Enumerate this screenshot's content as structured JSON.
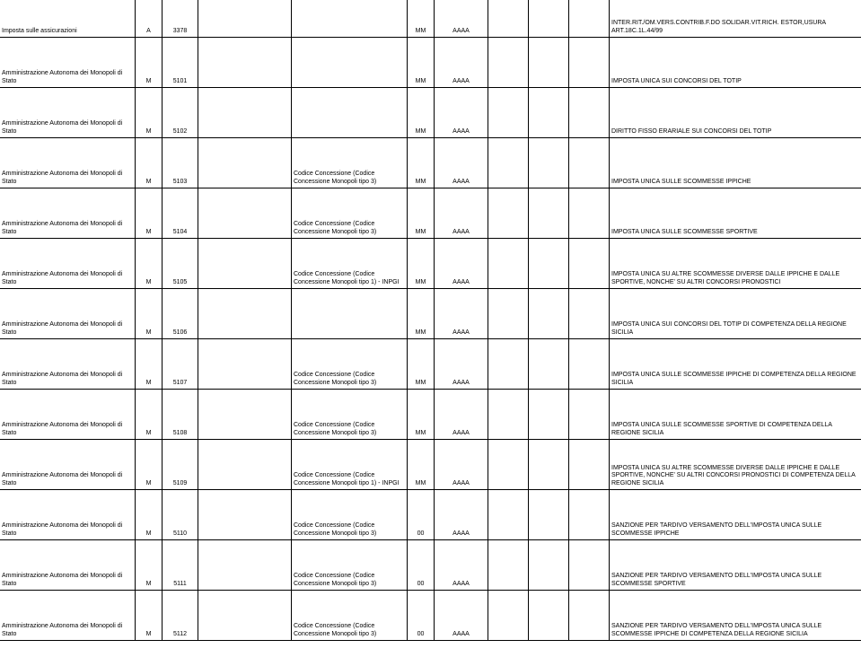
{
  "rows": [
    {
      "name": "Imposta sulle assicurazioni",
      "code1": "A",
      "code2": "3378",
      "col4": "",
      "col5": "",
      "mm": "MM",
      "aaaa": "AAAA",
      "col8": "",
      "col9": "",
      "col10": "",
      "desc": "INTER.RIT./OM.VERS.CONTRIB.F.DO SOLIDAR.VIT.RICH. ESTOR,USURA ART.18C.1L.44/99"
    },
    {
      "name": "Amministrazione Autonoma dei Monopoli di Stato",
      "code1": "M",
      "code2": "5101",
      "col4": "",
      "col5": "",
      "mm": "MM",
      "aaaa": "AAAA",
      "col8": "",
      "col9": "",
      "col10": "",
      "desc": "IMPOSTA UNICA SUI CONCORSI DEL TOTIP"
    },
    {
      "name": "Amministrazione Autonoma dei Monopoli di Stato",
      "code1": "M",
      "code2": "5102",
      "col4": "",
      "col5": "",
      "mm": "MM",
      "aaaa": "AAAA",
      "col8": "",
      "col9": "",
      "col10": "",
      "desc": "DIRITTO FISSO ERARIALE SUI CONCORSI DEL TOTIP"
    },
    {
      "name": "Amministrazione Autonoma dei Monopoli di Stato",
      "code1": "M",
      "code2": "5103",
      "col4": "",
      "col5": "Codice Concessione (Codice Concessione Monopoli tipo 3)",
      "mm": "MM",
      "aaaa": "AAAA",
      "col8": "",
      "col9": "",
      "col10": "",
      "desc": "IMPOSTA UNICA SULLE SCOMMESSE IPPICHE"
    },
    {
      "name": "Amministrazione Autonoma dei Monopoli di Stato",
      "code1": "M",
      "code2": "5104",
      "col4": "",
      "col5": "Codice Concessione (Codice Concessione Monopoli tipo 3)",
      "mm": "MM",
      "aaaa": "AAAA",
      "col8": "",
      "col9": "",
      "col10": "",
      "desc": "IMPOSTA UNICA SULLE SCOMMESSE SPORTIVE"
    },
    {
      "name": "Amministrazione Autonoma dei Monopoli di Stato",
      "code1": "M",
      "code2": "5105",
      "col4": "",
      "col5": "Codice Concessione (Codice Concessione Monopoli tipo 1) - INPGI",
      "mm": "MM",
      "aaaa": "AAAA",
      "col8": "",
      "col9": "",
      "col10": "",
      "desc": "IMPOSTA UNICA SU ALTRE SCOMMESSE DIVERSE DALLE IPPICHE E DALLE SPORTIVE, NONCHE' SU ALTRI CONCORSI PRONOSTICI"
    },
    {
      "name": "Amministrazione Autonoma dei Monopoli di Stato",
      "code1": "M",
      "code2": "5106",
      "col4": "",
      "col5": "",
      "mm": "MM",
      "aaaa": "AAAA",
      "col8": "",
      "col9": "",
      "col10": "",
      "desc": "IMPOSTA UNICA SUI CONCORSI DEL TOTIP DI COMPETENZA DELLA REGIONE SICILIA"
    },
    {
      "name": "Amministrazione Autonoma dei Monopoli di Stato",
      "code1": "M",
      "code2": "5107",
      "col4": "",
      "col5": "Codice Concessione (Codice Concessione Monopoli tipo 3)",
      "mm": "MM",
      "aaaa": "AAAA",
      "col8": "",
      "col9": "",
      "col10": "",
      "desc": "IMPOSTA UNICA SULLE SCOMMESSE IPPICHE DI COMPETENZA DELLA REGIONE SICILIA"
    },
    {
      "name": "Amministrazione Autonoma dei Monopoli di Stato",
      "code1": "M",
      "code2": "5108",
      "col4": "",
      "col5": "Codice Concessione (Codice Concessione Monopoli tipo 3)",
      "mm": "MM",
      "aaaa": "AAAA",
      "col8": "",
      "col9": "",
      "col10": "",
      "desc": "IMPOSTA UNICA SULLE SCOMMESSE SPORTIVE DI COMPETENZA DELLA REGIONE SICILIA"
    },
    {
      "name": "Amministrazione Autonoma dei Monopoli di Stato",
      "code1": "M",
      "code2": "5109",
      "col4": "",
      "col5": "Codice Concessione (Codice Concessione Monopoli tipo 1) - INPGI",
      "mm": "MM",
      "aaaa": "AAAA",
      "col8": "",
      "col9": "",
      "col10": "",
      "desc": "IMPOSTA UNICA SU ALTRE SCOMMESSE DIVERSE DALLE IPPICHE E DALLE SPORTIVE, NONCHE' SU ALTRI CONCORSI PRONOSTICI DI COMPETENZA DELLA REGIONE SICILIA"
    },
    {
      "name": "Amministrazione Autonoma dei Monopoli di Stato",
      "code1": "M",
      "code2": "5110",
      "col4": "",
      "col5": "Codice Concessione (Codice Concessione Monopoli tipo 3)",
      "mm": "00",
      "aaaa": "AAAA",
      "col8": "",
      "col9": "",
      "col10": "",
      "desc": "SANZIONE PER TARDIVO VERSAMENTO DELL'IMPOSTA UNICA SULLE SCOMMESSE IPPICHE"
    },
    {
      "name": "Amministrazione Autonoma dei Monopoli di Stato",
      "code1": "M",
      "code2": "5111",
      "col4": "",
      "col5": "Codice Concessione (Codice Concessione Monopoli tipo 3)",
      "mm": "00",
      "aaaa": "AAAA",
      "col8": "",
      "col9": "",
      "col10": "",
      "desc": "SANZIONE PER TARDIVO VERSAMENTO DELL'IMPOSTA UNICA SULLE SCOMMESSE SPORTIVE"
    },
    {
      "name": "Amministrazione Autonoma dei Monopoli di Stato",
      "code1": "M",
      "code2": "5112",
      "col4": "",
      "col5": "Codice Concessione (Codice Concessione Monopoli tipo 3)",
      "mm": "00",
      "aaaa": "AAAA",
      "col8": "",
      "col9": "",
      "col10": "",
      "desc": "SANZIONE PER TARDIVO VERSAMENTO DELL'IMPOSTA UNICA SULLE SCOMMESSE IPPICHE DI COMPETENZA DELLA REGIONE SICILIA"
    }
  ]
}
